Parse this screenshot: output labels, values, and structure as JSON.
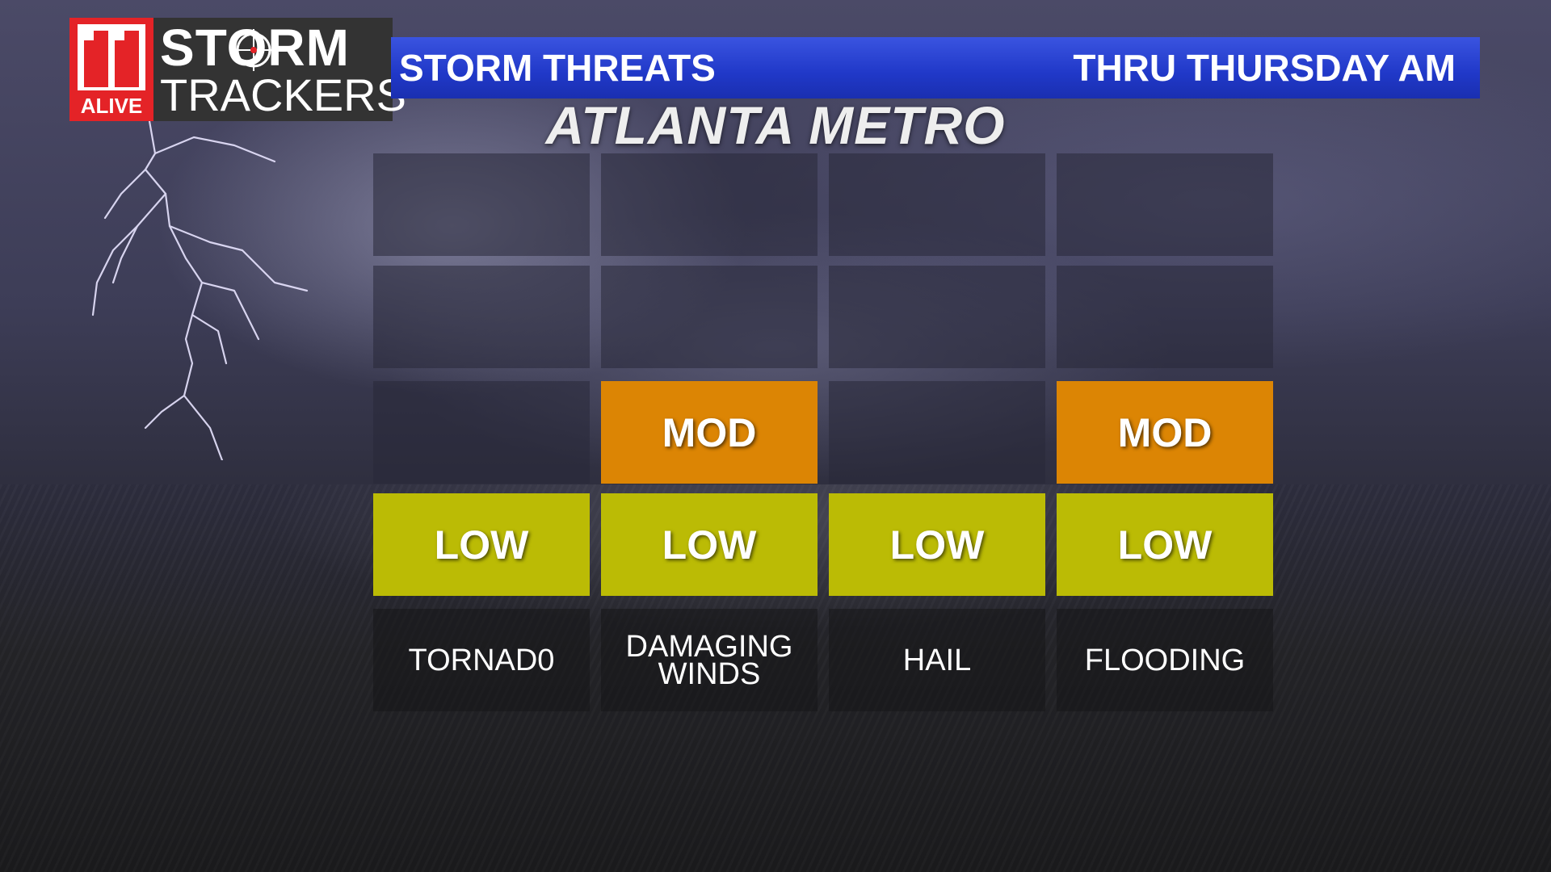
{
  "logo": {
    "station": "11",
    "alive": "ALIVE",
    "storm": "STORM",
    "trackers": "TRACKERS"
  },
  "banner": {
    "title": "STORM THREATS",
    "period": "THRU THURSDAY AM"
  },
  "region": "ATLANTA METRO",
  "colors": {
    "banner_blue": "#2038c8",
    "low": "#bbbb05",
    "moderate": "#dc8504",
    "logo_red": "#e42327"
  },
  "threats": [
    {
      "name": "TORNAD0",
      "level": "LOW",
      "level_value": 1,
      "cells": [
        {
          "label": "LOW",
          "type": "low"
        }
      ]
    },
    {
      "name": "DAMAGING WINDS",
      "level": "MOD",
      "level_value": 2,
      "cells": [
        {
          "label": "LOW",
          "type": "low"
        },
        {
          "label": "MOD",
          "type": "mod"
        }
      ]
    },
    {
      "name": "HAIL",
      "level": "LOW",
      "level_value": 1,
      "cells": [
        {
          "label": "LOW",
          "type": "low"
        }
      ]
    },
    {
      "name": "FLOODING",
      "level": "MOD",
      "level_value": 2,
      "cells": [
        {
          "label": "LOW",
          "type": "low"
        },
        {
          "label": "MOD",
          "type": "mod"
        }
      ]
    }
  ]
}
